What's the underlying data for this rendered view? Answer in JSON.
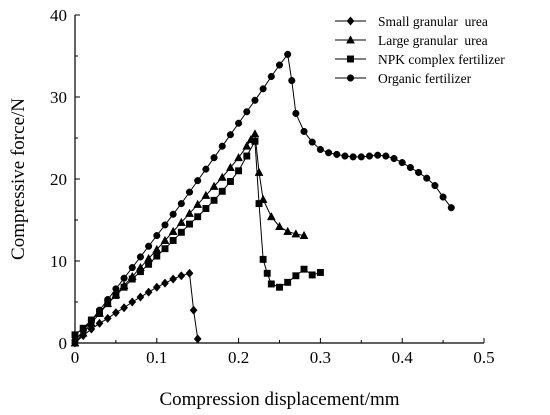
{
  "chart_data": {
    "type": "line",
    "title": "",
    "xlabel": "Compression displacement/mm",
    "ylabel": "Compressive force/N",
    "xlim": [
      0,
      0.5
    ],
    "ylim": [
      0,
      40
    ],
    "xticks": [
      0,
      0.1,
      0.2,
      0.3,
      0.4,
      0.5
    ],
    "yticks": [
      0,
      10,
      20,
      30,
      40
    ],
    "xtick_labels": [
      "0",
      "0.1",
      "0.2",
      "0.3",
      "0.4",
      "0.5"
    ],
    "ytick_labels": [
      "0",
      "10",
      "20",
      "30",
      "40"
    ],
    "grid": false,
    "legend_position": "top-right",
    "series": [
      {
        "name": "Small granular  urea",
        "marker": "diamond",
        "x": [
          0,
          0.01,
          0.02,
          0.03,
          0.04,
          0.05,
          0.06,
          0.07,
          0.08,
          0.09,
          0.1,
          0.11,
          0.12,
          0.13,
          0.14,
          0.145,
          0.15
        ],
        "y": [
          0,
          0.9,
          1.7,
          2.4,
          3.0,
          3.7,
          4.3,
          5.0,
          5.6,
          6.2,
          6.8,
          7.3,
          7.8,
          8.2,
          8.5,
          4.0,
          0.5
        ]
      },
      {
        "name": "Large granular  urea",
        "marker": "triangle",
        "x": [
          0,
          0.01,
          0.02,
          0.03,
          0.04,
          0.05,
          0.06,
          0.07,
          0.08,
          0.09,
          0.1,
          0.11,
          0.12,
          0.13,
          0.14,
          0.15,
          0.16,
          0.17,
          0.18,
          0.19,
          0.2,
          0.21,
          0.215,
          0.22,
          0.225,
          0.23,
          0.24,
          0.25,
          0.26,
          0.27,
          0.28
        ],
        "y": [
          0,
          1.2,
          2.4,
          3.6,
          4.8,
          5.9,
          7.0,
          8.1,
          9.2,
          10.3,
          11.4,
          12.5,
          13.6,
          14.7,
          15.8,
          16.9,
          18.0,
          19.1,
          20.2,
          21.4,
          22.6,
          24.0,
          24.8,
          25.5,
          20.8,
          17.5,
          15.4,
          14.2,
          13.6,
          13.3,
          13.1
        ]
      },
      {
        "name": "NPK complex fertilizer",
        "marker": "square",
        "x": [
          0,
          0.01,
          0.02,
          0.03,
          0.04,
          0.05,
          0.06,
          0.07,
          0.08,
          0.09,
          0.1,
          0.11,
          0.12,
          0.13,
          0.14,
          0.15,
          0.16,
          0.17,
          0.18,
          0.19,
          0.2,
          0.21,
          0.22,
          0.225,
          0.23,
          0.235,
          0.24,
          0.25,
          0.26,
          0.27,
          0.28,
          0.29,
          0.3
        ],
        "y": [
          1.0,
          1.8,
          2.8,
          3.8,
          4.8,
          5.8,
          6.8,
          7.8,
          8.7,
          9.6,
          10.6,
          11.5,
          12.5,
          13.5,
          14.5,
          15.4,
          16.4,
          17.4,
          18.5,
          19.7,
          21.0,
          22.8,
          24.6,
          17.0,
          10.2,
          8.5,
          7.2,
          6.8,
          7.4,
          8.2,
          9.0,
          8.3,
          8.6
        ]
      },
      {
        "name": "Organic fertilizer",
        "marker": "circle",
        "x": [
          0,
          0.01,
          0.02,
          0.03,
          0.04,
          0.05,
          0.06,
          0.07,
          0.08,
          0.09,
          0.1,
          0.11,
          0.12,
          0.13,
          0.14,
          0.15,
          0.16,
          0.17,
          0.18,
          0.19,
          0.2,
          0.21,
          0.22,
          0.23,
          0.24,
          0.25,
          0.26,
          0.265,
          0.27,
          0.28,
          0.29,
          0.3,
          0.31,
          0.32,
          0.33,
          0.34,
          0.35,
          0.36,
          0.37,
          0.38,
          0.39,
          0.4,
          0.41,
          0.42,
          0.43,
          0.44,
          0.45,
          0.46
        ],
        "y": [
          0.3,
          1.5,
          2.8,
          4.0,
          5.3,
          6.6,
          7.9,
          9.2,
          10.5,
          11.8,
          13.1,
          14.4,
          15.7,
          17.0,
          18.4,
          19.8,
          21.2,
          22.6,
          24.0,
          25.4,
          26.8,
          28.2,
          29.6,
          31.0,
          32.5,
          33.9,
          35.2,
          32.0,
          28.0,
          25.8,
          24.5,
          23.6,
          23.2,
          23.0,
          22.8,
          22.7,
          22.7,
          22.8,
          22.9,
          22.8,
          22.5,
          22.0,
          21.4,
          20.8,
          20.1,
          19.2,
          17.8,
          16.5
        ]
      }
    ]
  }
}
